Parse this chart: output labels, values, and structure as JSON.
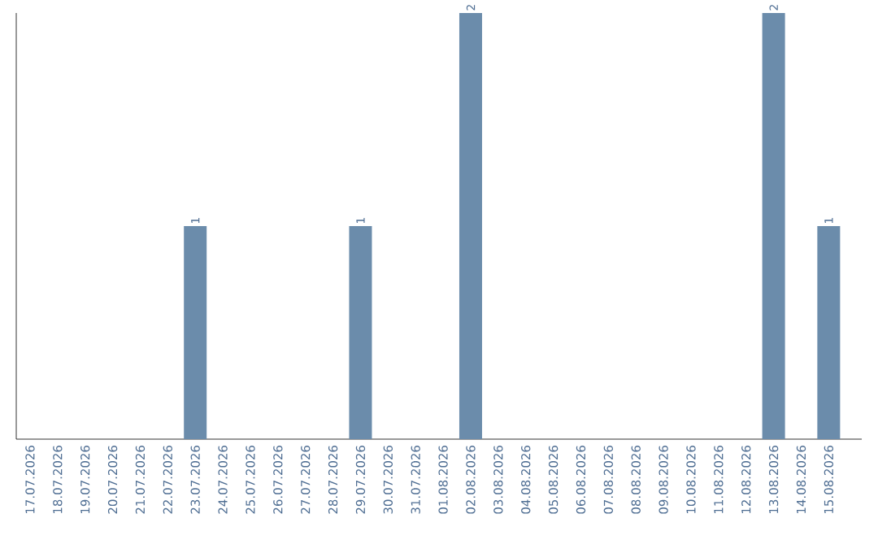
{
  "chart_data": {
    "type": "bar",
    "relative": false,
    "categories": [
      "17.07.2026",
      "18.07.2026",
      "19.07.2026",
      "20.07.2026",
      "21.07.2026",
      "22.07.2026",
      "23.07.2026",
      "24.07.2026",
      "25.07.2026",
      "26.07.2026",
      "27.07.2026",
      "28.07.2026",
      "29.07.2026",
      "30.07.2026",
      "31.07.2026",
      "01.08.2026",
      "02.08.2026",
      "03.08.2026",
      "04.08.2026",
      "05.08.2026",
      "06.08.2026",
      "07.08.2026",
      "08.08.2026",
      "09.08.2026",
      "10.08.2026",
      "11.08.2026",
      "12.08.2026",
      "13.08.2026",
      "14.08.2026",
      "15.08.2026"
    ],
    "values": [
      0,
      0,
      0,
      0,
      0,
      0,
      1,
      0,
      0,
      0,
      0,
      0,
      1,
      0,
      0,
      0,
      2,
      0,
      0,
      0,
      0,
      0,
      0,
      0,
      0,
      0,
      0,
      2,
      0,
      1
    ],
    "value_labels": [
      null,
      null,
      null,
      null,
      null,
      null,
      "1",
      null,
      null,
      null,
      null,
      null,
      "1",
      null,
      null,
      null,
      "2",
      null,
      null,
      null,
      null,
      null,
      null,
      null,
      null,
      null,
      null,
      "2",
      null,
      "1"
    ],
    "color": "#6b8cab"
  }
}
